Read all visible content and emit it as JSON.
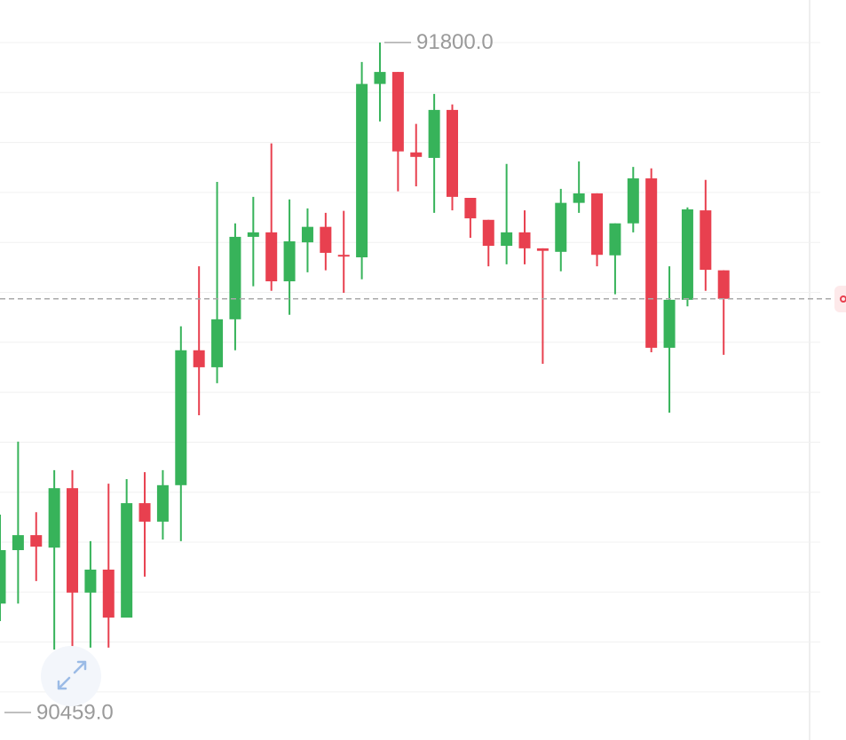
{
  "chart_data": {
    "type": "candlestick",
    "open": [
      90677,
      90784,
      90814,
      90789,
      90908,
      90699,
      90745,
      90649,
      90878,
      90841,
      90914,
      91184,
      91150,
      91246,
      91411,
      91420,
      91322,
      91400,
      91431,
      91375,
      91370,
      91717,
      91741,
      91580,
      91569,
      91665,
      91489,
      91445,
      91393,
      91420,
      91388,
      91381,
      91479,
      91498,
      91374,
      91438,
      91528,
      91189,
      91285,
      91464,
      91344
    ],
    "high": [
      90855,
      91001,
      90860,
      90944,
      90944,
      90802,
      90917,
      90926,
      90940,
      90944,
      91232,
      91352,
      91521,
      91438,
      91491,
      91598,
      91486,
      91468,
      91459,
      91463,
      91761,
      91800,
      91741,
      91637,
      91697,
      91676,
      91489,
      91445,
      91557,
      91464,
      91388,
      91507,
      91562,
      91498,
      91438,
      91551,
      91548,
      91352,
      91470,
      91525,
      91344
    ],
    "low": [
      90642,
      90677,
      90722,
      90585,
      90532,
      90589,
      90589,
      90649,
      90731,
      90805,
      90802,
      91054,
      91118,
      91184,
      91312,
      91303,
      91255,
      91340,
      91344,
      91299,
      91326,
      91642,
      91502,
      91512,
      91459,
      91464,
      91409,
      91352,
      91356,
      91356,
      91157,
      91342,
      91459,
      91352,
      91296,
      91420,
      91180,
      91059,
      91272,
      91303,
      91175
    ],
    "close": [
      90784,
      90814,
      90791,
      90908,
      90699,
      90745,
      90649,
      90878,
      90841,
      90914,
      91184,
      91150,
      91246,
      91411,
      91420,
      91322,
      91402,
      91431,
      91379,
      91372,
      91717,
      91741,
      91582,
      91571,
      91665,
      91491,
      91448,
      91393,
      91420,
      91388,
      91383,
      91479,
      91498,
      91375,
      91438,
      91528,
      91189,
      91285,
      91466,
      91345,
      91287
    ],
    "up_color": "#37b35a",
    "down_color": "#e8404f",
    "ylim": [
      90404,
      91885
    ],
    "last_price": 91287,
    "annotations": [
      {
        "value": 91800,
        "label": "91800.0"
      },
      {
        "value": 90459,
        "label": "90459.0"
      }
    ],
    "grid": true
  }
}
